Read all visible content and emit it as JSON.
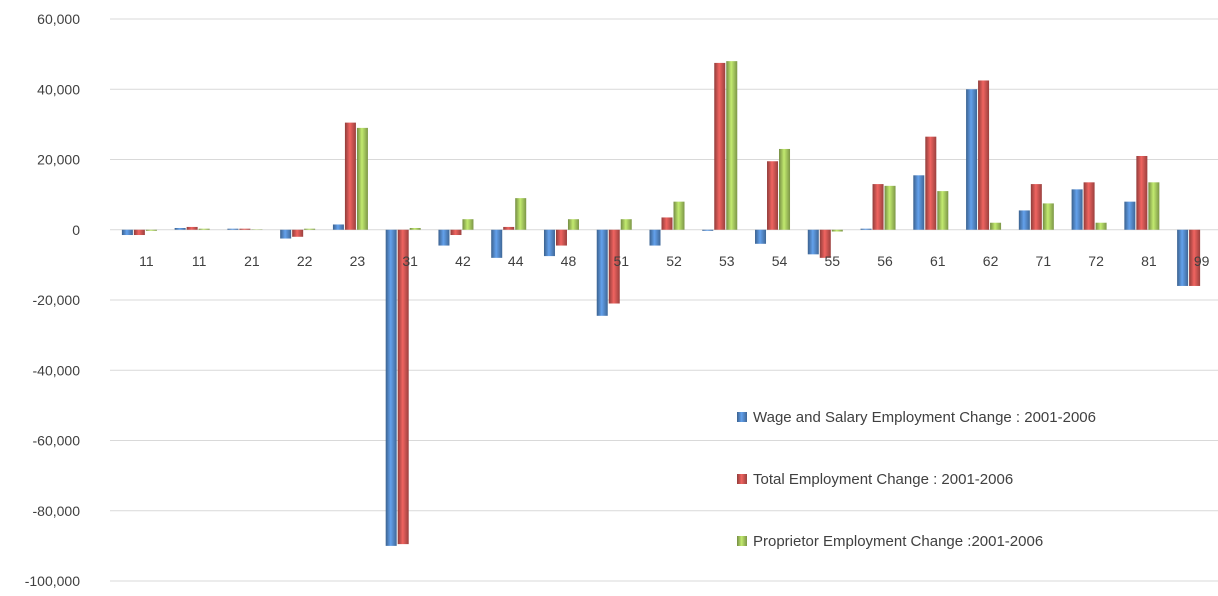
{
  "chart_data": {
    "type": "bar",
    "title": "",
    "xlabel": "",
    "ylabel": "",
    "ylim": [
      -100000,
      60000
    ],
    "yticks": [
      60000,
      40000,
      20000,
      0,
      -20000,
      -40000,
      -60000,
      -80000,
      -100000
    ],
    "ytick_labels": [
      "60,000",
      "40,000",
      "20,000",
      "0",
      "-20,000",
      "-40,000",
      "-60,000",
      "-80,000",
      "-100,000"
    ],
    "grid": true,
    "legend_position": "lower-right",
    "categories": [
      "11",
      "11",
      "21",
      "22",
      "23",
      "31",
      "42",
      "44",
      "48",
      "51",
      "52",
      "53",
      "54",
      "55",
      "56",
      "61",
      "62",
      "71",
      "72",
      "81",
      "99"
    ],
    "series": [
      {
        "name": "Wage and Salary Employment Change : 2001-2006",
        "color": "#4f81bd",
        "values": [
          -1500,
          500,
          300,
          -2500,
          1500,
          -90000,
          -4500,
          -8000,
          -7500,
          -24500,
          -4500,
          -300,
          -4000,
          -7000,
          300,
          15500,
          40000,
          5500,
          11500,
          8000,
          -16000
        ]
      },
      {
        "name": "Total Employment Change : 2001-2006",
        "color": "#c0504d",
        "values": [
          -1500,
          800,
          300,
          -2000,
          30500,
          -89500,
          -1500,
          800,
          -4500,
          -21000,
          3500,
          47500,
          19500,
          -8000,
          13000,
          26500,
          42500,
          13000,
          13500,
          21000,
          -16000
        ]
      },
      {
        "name": "Proprietor Employment Change :2001-2006",
        "color": "#9bbb59",
        "values": [
          -300,
          300,
          100,
          300,
          29000,
          500,
          3000,
          9000,
          3000,
          3000,
          8000,
          48000,
          23000,
          -500,
          12500,
          11000,
          2000,
          7500,
          2000,
          13500,
          0
        ]
      }
    ]
  }
}
